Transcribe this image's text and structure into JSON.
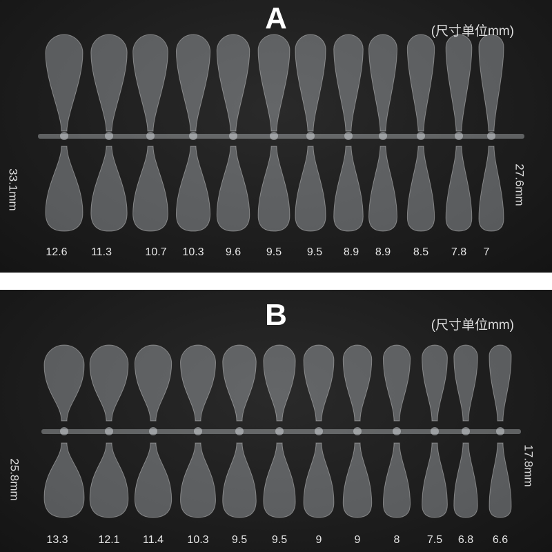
{
  "panels": [
    {
      "letter": "A",
      "unit_note": "(尺寸单位mm)",
      "left_length": "33.1mm",
      "right_length": "27.6mm",
      "widths": [
        "12.6",
        "11.3",
        "10.7",
        "10.3",
        "9.6",
        "9.5",
        "9.5",
        "8.9",
        "8.9",
        "8.5",
        "7.8",
        "7"
      ]
    },
    {
      "letter": "B",
      "unit_note": "(尺寸单位mm)",
      "left_length": "25.8mm",
      "right_length": "17.8mm",
      "widths": [
        "13.3",
        "12.1",
        "11.4",
        "10.3",
        "9.5",
        "9.5",
        "9",
        "9",
        "8",
        "7.5",
        "6.8",
        "6.6"
      ]
    }
  ],
  "colors": {
    "background": "#1c1c1c",
    "divider": "#ffffff",
    "text": "#ffffff"
  }
}
